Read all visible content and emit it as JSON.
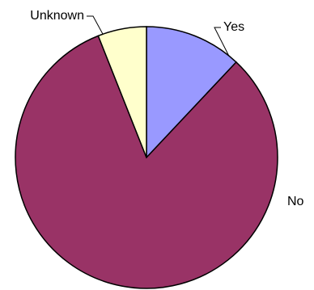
{
  "chart_data": {
    "type": "pie",
    "categories": [
      "Yes",
      "No",
      "Unknown"
    ],
    "values": [
      12,
      82,
      6
    ],
    "colors": [
      "#9999ff",
      "#993366",
      "#ffffcc"
    ]
  }
}
